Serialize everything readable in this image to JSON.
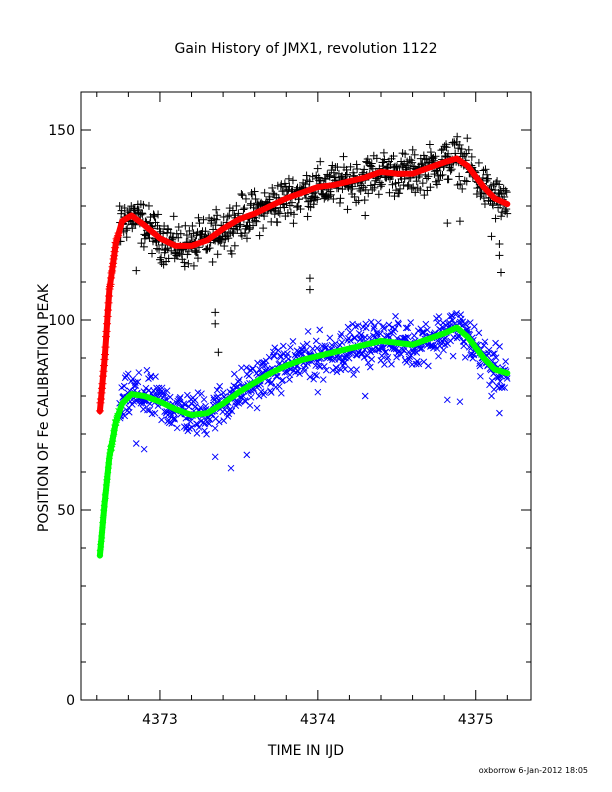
{
  "chart_data": {
    "type": "scatter",
    "title": "Gain History of JMX1, revolution 1122",
    "xlabel": "TIME IN IJD",
    "ylabel": "POSITION OF Fe CALIBRATION PEAK",
    "xlim": [
      4372.5,
      4375.35
    ],
    "ylim": [
      0,
      160
    ],
    "x_ticks": [
      4373,
      4374,
      4375
    ],
    "x_tick_labels": [
      "4373",
      "4374",
      "4375"
    ],
    "y_ticks": [
      0,
      50,
      100,
      150
    ],
    "y_tick_labels": [
      "0",
      "50",
      "100",
      "150"
    ],
    "grid": false,
    "legend": "none",
    "footer": "oxborrow   6-Jan-2012 18:05",
    "series": [
      {
        "marker": "+",
        "color": "#000000",
        "trend_color": "#ff0000",
        "trend": [
          [
            4372.62,
            76
          ],
          [
            4372.65,
            90
          ],
          [
            4372.68,
            108
          ],
          [
            4372.72,
            120
          ],
          [
            4372.76,
            126
          ],
          [
            4372.82,
            127.5
          ],
          [
            4372.9,
            125
          ],
          [
            4373.0,
            121.5
          ],
          [
            4373.1,
            119.5
          ],
          [
            4373.2,
            119.5
          ],
          [
            4373.3,
            121
          ],
          [
            4373.4,
            124
          ],
          [
            4373.5,
            126.5
          ],
          [
            4373.6,
            128
          ],
          [
            4373.7,
            130
          ],
          [
            4373.8,
            132
          ],
          [
            4373.9,
            133.5
          ],
          [
            4374.0,
            135
          ],
          [
            4374.1,
            135.5
          ],
          [
            4374.2,
            136.5
          ],
          [
            4374.3,
            137.5
          ],
          [
            4374.4,
            139
          ],
          [
            4374.5,
            138.5
          ],
          [
            4374.6,
            138.5
          ],
          [
            4374.7,
            140
          ],
          [
            4374.8,
            141.5
          ],
          [
            4374.88,
            142.5
          ],
          [
            4374.95,
            140.5
          ],
          [
            4375.05,
            135
          ],
          [
            4375.12,
            132
          ],
          [
            4375.2,
            130.5
          ]
        ],
        "outliers": [
          [
            4372.85,
            113
          ],
          [
            4373.05,
            124
          ],
          [
            4373.35,
            102
          ],
          [
            4373.35,
            99
          ],
          [
            4373.37,
            91.5
          ],
          [
            4373.95,
            111
          ],
          [
            4373.95,
            108
          ],
          [
            4374.3,
            127.5
          ],
          [
            4374.82,
            125.5
          ],
          [
            4374.9,
            126
          ],
          [
            4375.1,
            122
          ],
          [
            4375.15,
            120
          ],
          [
            4375.15,
            117
          ],
          [
            4375.16,
            112.5
          ]
        ],
        "scatter_spread": 4
      },
      {
        "marker": "x",
        "color": "#0000ff",
        "trend_color": "#00ff00",
        "trend": [
          [
            4372.62,
            38
          ],
          [
            4372.65,
            52
          ],
          [
            4372.68,
            64
          ],
          [
            4372.72,
            73
          ],
          [
            4372.76,
            78
          ],
          [
            4372.82,
            80.5
          ],
          [
            4372.9,
            80
          ],
          [
            4373.0,
            78.5
          ],
          [
            4373.1,
            76.5
          ],
          [
            4373.2,
            75
          ],
          [
            4373.3,
            75.5
          ],
          [
            4373.4,
            78
          ],
          [
            4373.5,
            81
          ],
          [
            4373.6,
            83.5
          ],
          [
            4373.7,
            86
          ],
          [
            4373.8,
            88
          ],
          [
            4373.9,
            89.5
          ],
          [
            4374.0,
            90.5
          ],
          [
            4374.1,
            91.5
          ],
          [
            4374.2,
            92.5
          ],
          [
            4374.3,
            93.5
          ],
          [
            4374.4,
            94.5
          ],
          [
            4374.5,
            94
          ],
          [
            4374.6,
            93.5
          ],
          [
            4374.7,
            95
          ],
          [
            4374.8,
            96.5
          ],
          [
            4374.88,
            98
          ],
          [
            4374.95,
            95.5
          ],
          [
            4375.05,
            90
          ],
          [
            4375.12,
            87
          ],
          [
            4375.2,
            86
          ]
        ],
        "outliers": [
          [
            4372.85,
            67.5
          ],
          [
            4372.9,
            66
          ],
          [
            4373.05,
            75
          ],
          [
            4373.35,
            64
          ],
          [
            4373.45,
            61
          ],
          [
            4373.55,
            64.5
          ],
          [
            4373.95,
            85
          ],
          [
            4374.0,
            81
          ],
          [
            4374.3,
            80
          ],
          [
            4374.82,
            79
          ],
          [
            4374.9,
            78.5
          ],
          [
            4375.1,
            80
          ],
          [
            4375.15,
            75.5
          ]
        ],
        "scatter_spread": 4
      }
    ]
  }
}
